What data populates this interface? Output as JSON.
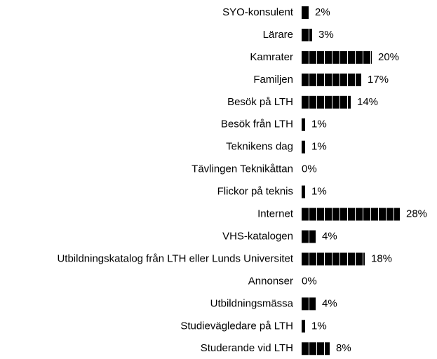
{
  "chart_data": {
    "type": "bar",
    "orientation": "horizontal",
    "categories": [
      "SYO-konsulent",
      "Lärare",
      "Kamrater",
      "Familjen",
      "Besök på LTH",
      "Besök från LTH",
      "Teknikens dag",
      "Tävlingen Teknikåttan",
      "Flickor på teknis",
      "Internet",
      "VHS-katalogen",
      "Utbildningskatalog från LTH eller Lunds Universitet",
      "Annonser",
      "Utbildningsmässa",
      "Studievägledare på LTH",
      "Studerande vid LTH"
    ],
    "values": [
      2,
      3,
      20,
      17,
      14,
      1,
      1,
      0,
      1,
      28,
      4,
      18,
      0,
      4,
      1,
      8
    ],
    "value_labels": [
      "2%",
      "3%",
      "20%",
      "17%",
      "14%",
      "1%",
      "1%",
      "0%",
      "1%",
      "28%",
      "4%",
      "18%",
      "0%",
      "4%",
      "1%",
      "8%"
    ],
    "color": "#000000"
  }
}
